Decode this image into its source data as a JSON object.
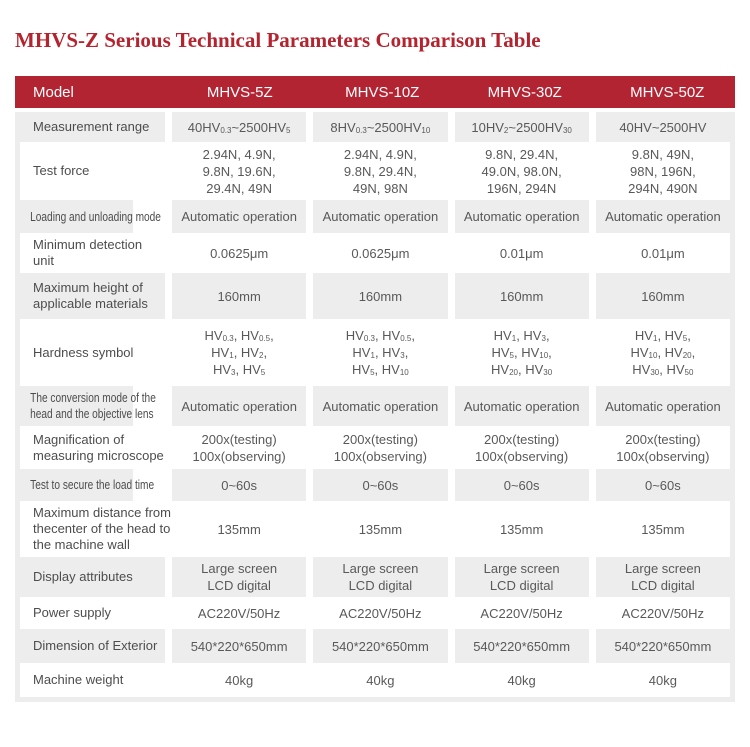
{
  "chart_data": {
    "type": "table",
    "title": "MHVS-Z Serious Technical Parameters Comparison Table",
    "columns": [
      "Model",
      "MHVS-5Z",
      "MHVS-10Z",
      "MHVS-30Z",
      "MHVS-50Z"
    ],
    "rows": [
      {
        "label": "Measurement range",
        "cells": [
          [
            "40HV0.3~2500HV5"
          ],
          [
            "8HV0.3~2500HV10"
          ],
          [
            "10HV2~2500HV30"
          ],
          [
            "40HV~2500HV"
          ]
        ]
      },
      {
        "label": "Test force",
        "cells": [
          [
            "2.94N, 4.9N,",
            "9.8N, 19.6N,",
            "29.4N, 49N"
          ],
          [
            "2.94N, 4.9N,",
            "9.8N, 29.4N,",
            "49N, 98N"
          ],
          [
            "9.8N, 29.4N,",
            "49.0N, 98.0N,",
            "196N, 294N"
          ],
          [
            "9.8N, 49N,",
            "98N, 196N,",
            "294N, 490N"
          ]
        ]
      },
      {
        "label": "Loading and unloading mode",
        "cells": [
          [
            "Automatic operation"
          ],
          [
            "Automatic operation"
          ],
          [
            "Automatic operation"
          ],
          [
            "Automatic operation"
          ]
        ]
      },
      {
        "label": "Minimum detection unit",
        "cells": [
          [
            "0.0625μm"
          ],
          [
            "0.0625μm"
          ],
          [
            "0.01μm"
          ],
          [
            "0.01μm"
          ]
        ]
      },
      {
        "label": "Maximum height of applicable materials",
        "label_lines": [
          "Maximum height of",
          "applicable materials"
        ],
        "cells": [
          [
            "160mm"
          ],
          [
            "160mm"
          ],
          [
            "160mm"
          ],
          [
            "160mm"
          ]
        ]
      },
      {
        "label": "Hardness symbol",
        "cells": [
          [
            "HV0.3, HV0.5,",
            "HV1, HV2,",
            "HV3, HV5"
          ],
          [
            "HV0.3, HV0.5,",
            "HV1, HV3,",
            "HV5, HV10"
          ],
          [
            "HV1, HV3,",
            "HV5, HV10,",
            "HV20, HV30"
          ],
          [
            "HV1, HV5,",
            "HV10, HV20,",
            "HV30, HV50"
          ]
        ]
      },
      {
        "label": "The conversion mode of the head and the objective lens",
        "label_lines": [
          "The conversion mode of the",
          "head and the objective lens"
        ],
        "cells": [
          [
            "Automatic operation"
          ],
          [
            "Automatic operation"
          ],
          [
            "Automatic operation"
          ],
          [
            "Automatic operation"
          ]
        ]
      },
      {
        "label": "Magnification of measuring microscope",
        "label_lines": [
          "Magnification of",
          "measuring microscope"
        ],
        "cells": [
          [
            "200x(testing)",
            "100x(observing)"
          ],
          [
            "200x(testing)",
            "100x(observing)"
          ],
          [
            "200x(testing)",
            "100x(observing)"
          ],
          [
            "200x(testing)",
            "100x(observing)"
          ]
        ]
      },
      {
        "label": "Test to secure the load time",
        "cells": [
          [
            "0~60s"
          ],
          [
            "0~60s"
          ],
          [
            "0~60s"
          ],
          [
            "0~60s"
          ]
        ]
      },
      {
        "label": "Maximum distance from thecenter of the head to the machine wall",
        "label_lines": [
          "Maximum distance from",
          "thecenter of the head to",
          "the machine wall"
        ],
        "cells": [
          [
            "135mm"
          ],
          [
            "135mm"
          ],
          [
            "135mm"
          ],
          [
            "135mm"
          ]
        ]
      },
      {
        "label": "Display attributes",
        "cells": [
          [
            "Large screen",
            "LCD digital"
          ],
          [
            "Large screen",
            "LCD digital"
          ],
          [
            "Large screen",
            "LCD digital"
          ],
          [
            "Large screen",
            "LCD digital"
          ]
        ]
      },
      {
        "label": "Power supply",
        "cells": [
          [
            "AC220V/50Hz"
          ],
          [
            "AC220V/50Hz"
          ],
          [
            "AC220V/50Hz"
          ],
          [
            "AC220V/50Hz"
          ]
        ]
      },
      {
        "label": "Dimension of Exterior",
        "cells": [
          [
            "540*220*650mm"
          ],
          [
            "540*220*650mm"
          ],
          [
            "540*220*650mm"
          ],
          [
            "540*220*650mm"
          ]
        ]
      },
      {
        "label": "Machine weight",
        "cells": [
          [
            "40kg"
          ],
          [
            "40kg"
          ],
          [
            "40kg"
          ],
          [
            "40kg"
          ]
        ]
      }
    ]
  },
  "colors": {
    "header_bg": "#b32433",
    "title_text": "#b5232e",
    "row_alt_bg": "#ededed",
    "label_text": "#4d4d4d",
    "value_text": "#595959",
    "header_text": "#ffffff"
  }
}
